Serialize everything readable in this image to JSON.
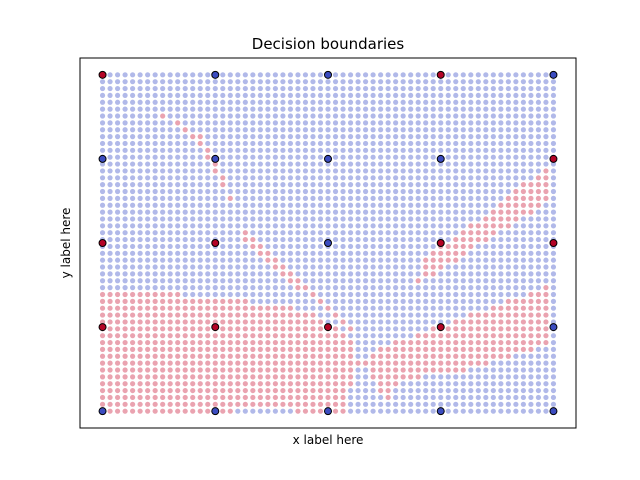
{
  "chart_data": {
    "type": "scatter",
    "title": "Decision boundaries",
    "xlabel": "x label here",
    "ylabel": "y label here",
    "xlim": [
      -0.05,
      1.05
    ],
    "ylim": [
      -0.05,
      1.05
    ],
    "ticks_visible": false,
    "grid": false,
    "colors": {
      "class_0_background": "#b1b9e9",
      "class_1_background": "#eaa3b0",
      "class_0_point": "#3b4cc0",
      "class_1_point": "#b40426",
      "point_edge": "#000000"
    },
    "background_grid": {
      "description_values": "decision-region mesh over [0,1]x[0,1], 61 columns x 50 rows; class 1 regions approximated as polygons in data units",
      "x_steps": 61,
      "y_steps": 50,
      "class_1_regions": [
        [
          [
            0.0,
            0.0
          ],
          [
            0.0,
            0.35
          ],
          [
            0.15,
            0.35
          ],
          [
            0.3,
            0.33
          ],
          [
            0.45,
            0.3
          ],
          [
            0.52,
            0.25
          ],
          [
            0.55,
            0.22
          ],
          [
            0.57,
            0.15
          ],
          [
            0.55,
            0.08
          ],
          [
            0.54,
            0.0
          ],
          [
            0.43,
            0.0
          ],
          [
            0.38,
            0.01
          ],
          [
            0.3,
            0.0
          ]
        ],
        [
          [
            0.12,
            0.9
          ],
          [
            0.22,
            0.82
          ],
          [
            0.27,
            0.7
          ],
          [
            0.3,
            0.56
          ],
          [
            0.36,
            0.48
          ],
          [
            0.44,
            0.38
          ],
          [
            0.55,
            0.26
          ],
          [
            0.56,
            0.21
          ],
          [
            0.5,
            0.3
          ],
          [
            0.44,
            0.36
          ],
          [
            0.36,
            0.44
          ],
          [
            0.31,
            0.52
          ],
          [
            0.27,
            0.66
          ],
          [
            0.22,
            0.78
          ],
          [
            0.13,
            0.88
          ]
        ],
        [
          [
            0.63,
            0.0
          ],
          [
            0.64,
            0.07
          ],
          [
            0.7,
            0.1
          ],
          [
            0.8,
            0.12
          ],
          [
            0.9,
            0.16
          ],
          [
            1.0,
            0.2
          ],
          [
            1.0,
            0.38
          ],
          [
            0.9,
            0.33
          ],
          [
            0.8,
            0.28
          ],
          [
            0.7,
            0.23
          ],
          [
            0.6,
            0.18
          ],
          [
            0.58,
            0.14
          ],
          [
            0.62,
            0.05
          ]
        ],
        [
          [
            0.69,
            0.37
          ],
          [
            0.75,
            0.42
          ],
          [
            0.82,
            0.48
          ],
          [
            0.9,
            0.55
          ],
          [
            1.0,
            0.63
          ],
          [
            1.0,
            0.75
          ],
          [
            0.92,
            0.66
          ],
          [
            0.85,
            0.58
          ],
          [
            0.78,
            0.52
          ],
          [
            0.72,
            0.46
          ],
          [
            0.7,
            0.4
          ]
        ],
        [
          [
            0.76,
            0.48
          ],
          [
            0.83,
            0.55
          ],
          [
            0.9,
            0.6
          ],
          [
            0.96,
            0.66
          ],
          [
            0.96,
            0.63
          ],
          [
            0.9,
            0.57
          ],
          [
            0.82,
            0.51
          ]
        ]
      ]
    },
    "points": [
      {
        "x": 0.0,
        "y": 1.0,
        "class": 1
      },
      {
        "x": 0.25,
        "y": 1.0,
        "class": 0
      },
      {
        "x": 0.5,
        "y": 1.0,
        "class": 0
      },
      {
        "x": 0.75,
        "y": 1.0,
        "class": 1
      },
      {
        "x": 1.0,
        "y": 1.0,
        "class": 0
      },
      {
        "x": 0.0,
        "y": 0.75,
        "class": 0
      },
      {
        "x": 0.25,
        "y": 0.75,
        "class": 0
      },
      {
        "x": 0.5,
        "y": 0.75,
        "class": 0
      },
      {
        "x": 0.75,
        "y": 0.75,
        "class": 0
      },
      {
        "x": 1.0,
        "y": 0.75,
        "class": 1
      },
      {
        "x": 0.0,
        "y": 0.5,
        "class": 1
      },
      {
        "x": 0.25,
        "y": 0.5,
        "class": 1
      },
      {
        "x": 0.5,
        "y": 0.5,
        "class": 0
      },
      {
        "x": 0.75,
        "y": 0.5,
        "class": 1
      },
      {
        "x": 1.0,
        "y": 0.5,
        "class": 1
      },
      {
        "x": 0.0,
        "y": 0.25,
        "class": 1
      },
      {
        "x": 0.25,
        "y": 0.25,
        "class": 1
      },
      {
        "x": 0.5,
        "y": 0.25,
        "class": 1
      },
      {
        "x": 0.75,
        "y": 0.25,
        "class": 1
      },
      {
        "x": 1.0,
        "y": 0.25,
        "class": 0
      },
      {
        "x": 0.0,
        "y": 0.0,
        "class": 0
      },
      {
        "x": 0.25,
        "y": 0.0,
        "class": 0
      },
      {
        "x": 0.5,
        "y": 0.0,
        "class": 0
      },
      {
        "x": 0.75,
        "y": 0.0,
        "class": 0
      },
      {
        "x": 1.0,
        "y": 0.0,
        "class": 0
      }
    ]
  }
}
